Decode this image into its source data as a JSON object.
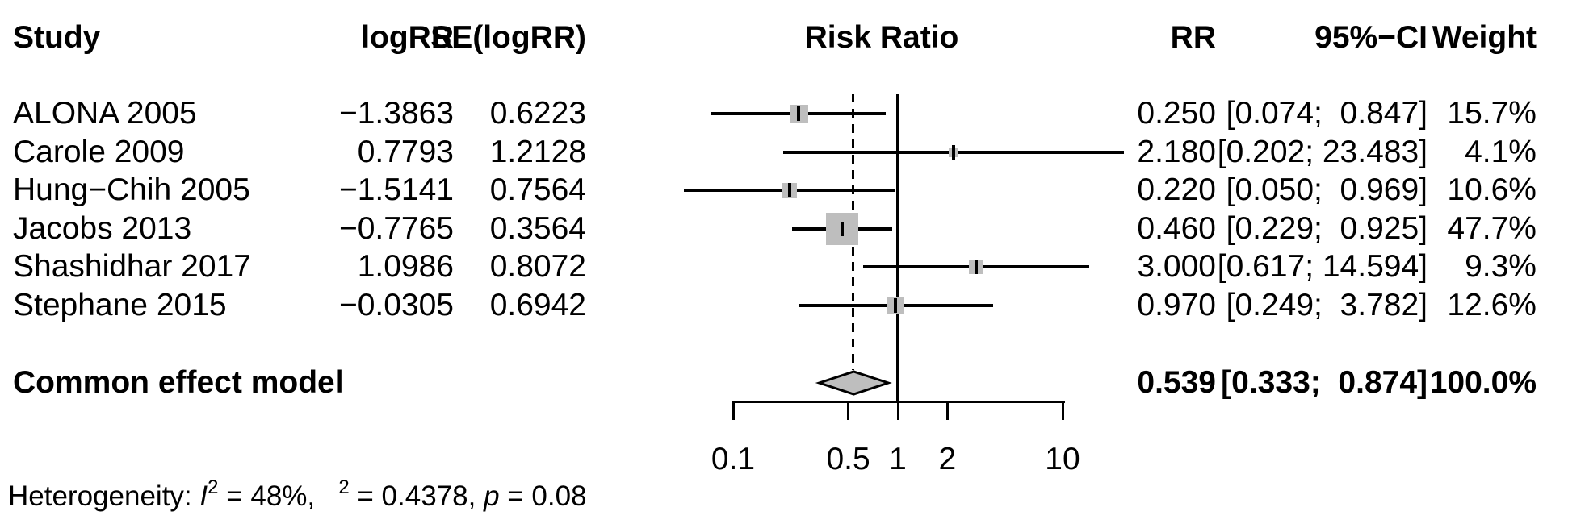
{
  "headers": {
    "study": "Study",
    "logrr": "logRR",
    "se": "SE(logRR)",
    "risk_ratio": "Risk Ratio",
    "rr": "RR",
    "ci": "95%−CI",
    "weight": "Weight"
  },
  "heterogeneity": {
    "prefix": "Heterogeneity: ",
    "i_label": "I",
    "i_sup": "2",
    "i_rest": " = 48%, ",
    "tau_gap": "  ",
    "tau_sup": "2",
    "tau_rest": " = 0.4378, ",
    "p_label": "p",
    "p_rest": " = 0.08"
  },
  "colors": {
    "marker_fill": "#bebebe",
    "diamond_fill": "#bebebe",
    "line": "#000000"
  },
  "chart_data": {
    "type": "forest",
    "effect_measure": "Risk Ratio",
    "x_scale": "log10",
    "x_ticks": [
      0.1,
      0.5,
      1,
      2,
      10
    ],
    "x_tick_labels": [
      "0.1",
      "0.5",
      "1",
      "2",
      "10"
    ],
    "x_range": [
      0.1,
      10
    ],
    "reference_line": 1,
    "dashed_line_at": 0.539,
    "studies": [
      {
        "name": "ALONA 2005",
        "logRR_text": "−1.3863",
        "se_text": "0.6223",
        "logRR": -1.3863,
        "seLogRR": 0.6223,
        "rr": 0.25,
        "ci_low": 0.074,
        "ci_high": 0.847,
        "weight_pct": 15.7,
        "rr_text": "0.250",
        "ci_text": "[0.074;  0.847]",
        "weight_text": "15.7%"
      },
      {
        "name": "Carole 2009",
        "logRR_text": "0.7793",
        "se_text": "1.2128",
        "logRR": 0.7793,
        "seLogRR": 1.2128,
        "rr": 2.18,
        "ci_low": 0.202,
        "ci_high": 23.483,
        "weight_pct": 4.1,
        "rr_text": "2.180",
        "ci_text": "[0.202; 23.483]",
        "weight_text": "4.1%"
      },
      {
        "name": "Hung−Chih 2005",
        "logRR_text": "−1.5141",
        "se_text": "0.7564",
        "logRR": -1.5141,
        "seLogRR": 0.7564,
        "rr": 0.22,
        "ci_low": 0.05,
        "ci_high": 0.969,
        "weight_pct": 10.6,
        "rr_text": "0.220",
        "ci_text": "[0.050;  0.969]",
        "weight_text": "10.6%"
      },
      {
        "name": "Jacobs 2013",
        "logRR_text": "−0.7765",
        "se_text": "0.3564",
        "logRR": -0.7765,
        "seLogRR": 0.3564,
        "rr": 0.46,
        "ci_low": 0.229,
        "ci_high": 0.925,
        "weight_pct": 47.7,
        "rr_text": "0.460",
        "ci_text": "[0.229;  0.925]",
        "weight_text": "47.7%"
      },
      {
        "name": "Shashidhar 2017",
        "logRR_text": "1.0986",
        "se_text": "0.8072",
        "logRR": 1.0986,
        "seLogRR": 0.8072,
        "rr": 3.0,
        "ci_low": 0.617,
        "ci_high": 14.594,
        "weight_pct": 9.3,
        "rr_text": "3.000",
        "ci_text": "[0.617; 14.594]",
        "weight_text": "9.3%"
      },
      {
        "name": "Stephane 2015",
        "logRR_text": "−0.0305",
        "se_text": "0.6942",
        "logRR": -0.0305,
        "seLogRR": 0.6942,
        "rr": 0.97,
        "ci_low": 0.249,
        "ci_high": 3.782,
        "weight_pct": 12.6,
        "rr_text": "0.970",
        "ci_text": "[0.249;  3.782]",
        "weight_text": "12.6%"
      }
    ],
    "summary": {
      "label": "Common effect model",
      "rr": 0.539,
      "ci_low": 0.333,
      "ci_high": 0.874,
      "weight_pct": 100.0,
      "rr_text": "0.539",
      "ci_text": "[0.333;  0.874]",
      "weight_text": "100.0%"
    },
    "heterogeneity": {
      "I2_pct": 48,
      "tau2": 0.4378,
      "p": 0.08
    }
  }
}
